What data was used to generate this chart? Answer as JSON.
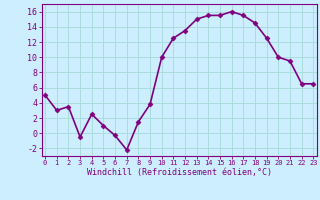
{
  "x": [
    0,
    1,
    2,
    3,
    4,
    5,
    6,
    7,
    8,
    9,
    10,
    11,
    12,
    13,
    14,
    15,
    16,
    17,
    18,
    19,
    20,
    21,
    22,
    23
  ],
  "y": [
    5,
    3,
    3.5,
    -0.5,
    2.5,
    1,
    -0.3,
    -2.2,
    1.5,
    3.8,
    10,
    12.5,
    13.5,
    15,
    15.5,
    15.5,
    16,
    15.5,
    14.5,
    12.5,
    10,
    9.5,
    6.5,
    6.5
  ],
  "line_color": "#800080",
  "marker": "D",
  "marker_size": 2.5,
  "bg_color": "#cceeff",
  "grid_color": "#aadddd",
  "xlabel": "Windchill (Refroidissement éolien,°C)",
  "xlabel_color": "#800080",
  "tick_color": "#800080",
  "ylim": [
    -3,
    17
  ],
  "yticks": [
    -2,
    0,
    2,
    4,
    6,
    8,
    10,
    12,
    14,
    16
  ],
  "xticks": [
    0,
    1,
    2,
    3,
    4,
    5,
    6,
    7,
    8,
    9,
    10,
    11,
    12,
    13,
    14,
    15,
    16,
    17,
    18,
    19,
    20,
    21,
    22,
    23
  ],
  "font": "monospace",
  "linewidth": 1.2,
  "xlabel_fontsize": 6.0,
  "ytick_fontsize": 6.0,
  "xtick_fontsize": 5.0
}
